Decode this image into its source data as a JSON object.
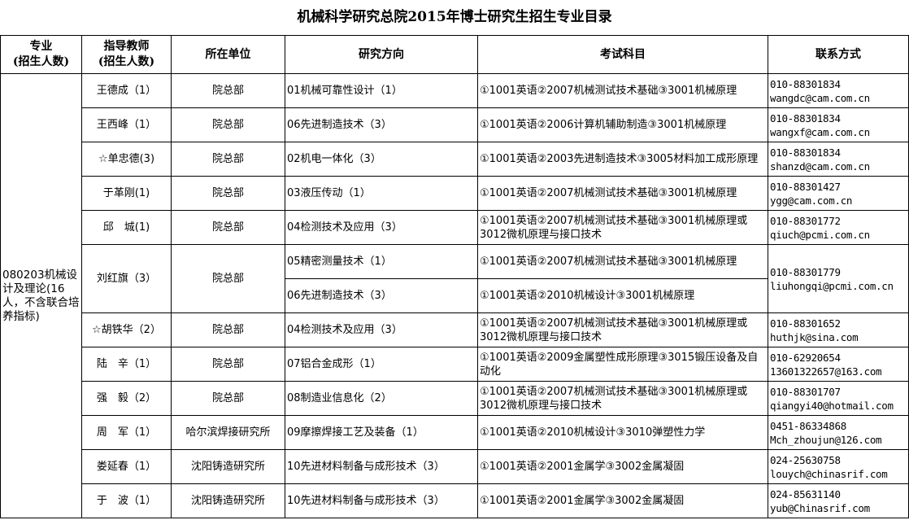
{
  "title": "机械科学研究总院2015年博士研究生招生专业目录",
  "headers": {
    "major": [
      "专业",
      "(招生人数)"
    ],
    "advisor": [
      "指导教师",
      "(招生人数)"
    ],
    "unit": "所在单位",
    "direction": "研究方向",
    "exam": "考试科目",
    "contact": "联系方式"
  },
  "major": "080203机械设计及理论(16人，不含联合培养指标)",
  "advisors": [
    {
      "name": "王德成（1）",
      "unit": "院总部",
      "directions": [
        {
          "direction": "01机械可靠性设计（1）",
          "exam": "①1001英语②2007机械测试技术基础③3001机械原理"
        }
      ],
      "phone": "010-88301834",
      "email": "wangdc@cam.com.cn"
    },
    {
      "name": "王西峰（1）",
      "unit": "院总部",
      "directions": [
        {
          "direction": "06先进制造技术（3）",
          "exam": "①1001英语②2006计算机辅助制造③3001机械原理"
        }
      ],
      "phone": "010-88301834",
      "email": "wangxf@cam.com.cn"
    },
    {
      "name": "☆单忠德(3)",
      "unit": "院总部",
      "directions": [
        {
          "direction": "02机电一体化（3）",
          "exam": "①1001英语②2003先进制造技术③3005材料加工成形原理"
        }
      ],
      "phone": "010-88301834",
      "email": "shanzd@cam.com.cn"
    },
    {
      "name": "于革刚(1)",
      "unit": "院总部",
      "directions": [
        {
          "direction": "03液压传动（1）",
          "exam": "①1001英语②2007机械测试技术基础③3001机械原理"
        }
      ],
      "phone": "010-88301427",
      "email": "ygg@cam.com.cn"
    },
    {
      "name": "邱　城(1)",
      "unit": "院总部",
      "directions": [
        {
          "direction": "04检测技术及应用（3）",
          "exam": "①1001英语②2007机械测试技术基础③3001机械原理或3012微机原理与接口技术"
        }
      ],
      "phone": "010-88301772",
      "email": "qiuch@pcmi.com.cn"
    },
    {
      "name": "刘红旗（3）",
      "unit": "院总部",
      "directions": [
        {
          "direction": "05精密测量技术（1）",
          "exam": "①1001英语②2007机械测试技术基础③3001机械原理"
        },
        {
          "direction": "06先进制造技术（3）",
          "exam": "①1001英语②2010机械设计③3001机械原理"
        }
      ],
      "phone": "010-88301779",
      "email": "liuhongqi@pcmi.com.cn"
    },
    {
      "name": "☆胡铁华（2）",
      "unit": "院总部",
      "directions": [
        {
          "direction": "04检测技术及应用（3）",
          "exam": "①1001英语②2007机械测试技术基础③3001机械原理或3012微机原理与接口技术"
        }
      ],
      "phone": "010-88301652",
      "email": "huthjk@sina.com"
    },
    {
      "name": "陆　辛（1）",
      "unit": "院总部",
      "directions": [
        {
          "direction": "07铝合金成形（1）",
          "exam": "①1001英语②2009金属塑性成形原理③3015锻压设备及自动化"
        }
      ],
      "phone": "010-62920654",
      "email": "13601322657@163.com"
    },
    {
      "name": "强　毅（2）",
      "unit": "院总部",
      "directions": [
        {
          "direction": "08制造业信息化（2）",
          "exam": "①1001英语②2007机械测试技术基础③3001机械原理或3012微机原理与接口技术"
        }
      ],
      "phone": "010-88301707",
      "email": "qiangyi40@hotmail.com"
    },
    {
      "name": "周　军（1）",
      "unit": "哈尔滨焊接研究所",
      "directions": [
        {
          "direction": "09摩擦焊接工艺及装备（1）",
          "exam": "①1001英语②2010机械设计③3010弹塑性力学"
        }
      ],
      "phone": "0451-86334868",
      "email": "Mch_zhoujun@126.com"
    },
    {
      "name": "娄延春（1）",
      "unit": "沈阳铸造研究所",
      "directions": [
        {
          "direction": "10先进材料制备与成形技术（3）",
          "exam": "①1001英语②2001金属学③3002金属凝固"
        }
      ],
      "phone": "024-25630758",
      "email": "louych@chinasrif.com"
    },
    {
      "name": "于　波（1）",
      "unit": "沈阳铸造研究所",
      "directions": [
        {
          "direction": "10先进材料制备与成形技术（3）",
          "exam": "①1001英语②2001金属学③3002金属凝固"
        }
      ],
      "phone": "024-85631140",
      "email": "yub@Chinasrif.com"
    }
  ]
}
